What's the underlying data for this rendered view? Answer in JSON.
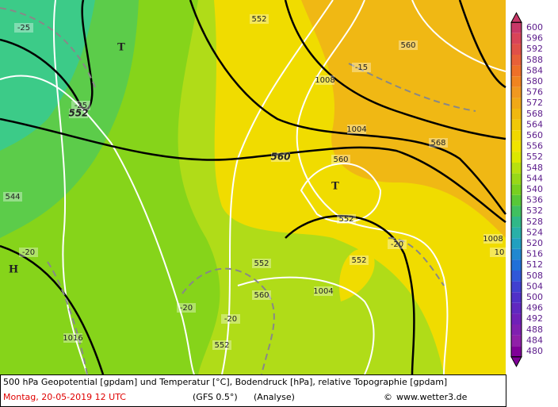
{
  "map_labels": [
    "-25",
    "T",
    "-25",
    "552",
    "552",
    "560",
    "-15",
    "1008",
    "1004",
    "568",
    "560",
    "560",
    "T",
    "544",
    "552",
    "-20",
    "1008",
    "10",
    "H",
    "-20",
    "552",
    "552",
    "1004",
    "-20",
    "-20",
    "1016",
    "552",
    "560"
  ],
  "colorbar": {
    "labels": [
      "600",
      "596",
      "592",
      "588",
      "584",
      "580",
      "576",
      "572",
      "568",
      "564",
      "560",
      "556",
      "552",
      "548",
      "544",
      "540",
      "536",
      "532",
      "528",
      "524",
      "520",
      "516",
      "512",
      "508",
      "504",
      "500",
      "496",
      "492",
      "488",
      "484",
      "480"
    ],
    "colors": [
      "#c83868",
      "#d84458",
      "#e05048",
      "#e86038",
      "#ee7028",
      "#f08420",
      "#f09820",
      "#f0a818",
      "#f0b810",
      "#f0c808",
      "#f0d800",
      "#f0e400",
      "#dce800",
      "#b8e010",
      "#98d818",
      "#78d020",
      "#58c838",
      "#40c060",
      "#30b888",
      "#28b0a8",
      "#20a0c0",
      "#2088d0",
      "#2070d8",
      "#3058d8",
      "#4040d0",
      "#5030c8",
      "#6028c0",
      "#7020b8",
      "#8020b0",
      "#9020a8",
      "#800098"
    ]
  },
  "footer": {
    "line1": "500 hPa Geopotential [gpdam] und Temperatur [°C], Bodendruck [hPa], relative Topographie [gpdam]",
    "date": "Montag, 20-05-2019  12 UTC",
    "model": "(GFS 0.5°)",
    "run": "(Analyse)",
    "copyright": "©",
    "site": "www.wetter3.de"
  }
}
